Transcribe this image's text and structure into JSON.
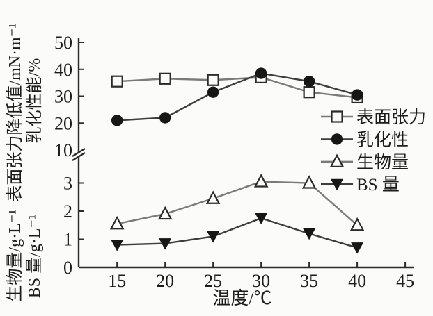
{
  "colors": {
    "background": "#fbfbf9",
    "axis": "#2b2b2b",
    "text": "#1c1c1c",
    "marker_filled": "#161616",
    "marker_open_stroke": "#2b2b2b",
    "marker_open_fill": "#fcfcfa",
    "line_light": "#7a7a78",
    "line_dark": "#3d3d3b"
  },
  "chart_data": {
    "type": "line",
    "title": "",
    "xlabel": "温度/℃",
    "x": [
      15,
      20,
      25,
      30,
      35,
      40
    ],
    "x_ticks": [
      15,
      20,
      25,
      30,
      35,
      40,
      45
    ],
    "xlim": [
      11,
      45.5
    ],
    "grid": false,
    "axis_break": true,
    "axis_break_between": [
      3,
      10
    ],
    "y_axis_upper": {
      "label_main": "表面张力降低值/mN·m⁻¹",
      "label_secondary": "乳化性能/%",
      "ticks": [
        10,
        20,
        30,
        40,
        50
      ],
      "ylim": [
        10,
        50
      ]
    },
    "y_axis_lower": {
      "label_main": "生物量/g·L⁻¹",
      "label_secondary": "BS 量/g·L⁻¹",
      "ticks": [
        0,
        1,
        2,
        3
      ],
      "ylim": [
        0,
        3.3
      ]
    },
    "series": [
      {
        "name": "表面张力",
        "axis": "upper",
        "marker": "square-open",
        "line_color": "#7a7a78",
        "values": [
          35.5,
          36.5,
          36.0,
          37.0,
          31.5,
          29.5
        ]
      },
      {
        "name": "乳化性",
        "axis": "upper",
        "marker": "circle-filled",
        "line_color": "#3d3d3b",
        "values": [
          21.0,
          22.0,
          31.5,
          38.5,
          35.5,
          30.5
        ]
      },
      {
        "name": "生物量",
        "axis": "lower",
        "marker": "triangle-open",
        "line_color": "#7a7a78",
        "values": [
          1.55,
          1.9,
          2.45,
          3.05,
          3.0,
          1.5
        ]
      },
      {
        "name": "BS 量",
        "axis": "lower",
        "marker": "triangle-down-filled",
        "line_color": "#3d3d3b",
        "values": [
          0.8,
          0.85,
          1.1,
          1.75,
          1.2,
          0.7
        ]
      }
    ],
    "legend": {
      "position": "middle-right",
      "entries": [
        "表面张力",
        "乳化性",
        "生物量",
        "BS 量"
      ]
    }
  }
}
